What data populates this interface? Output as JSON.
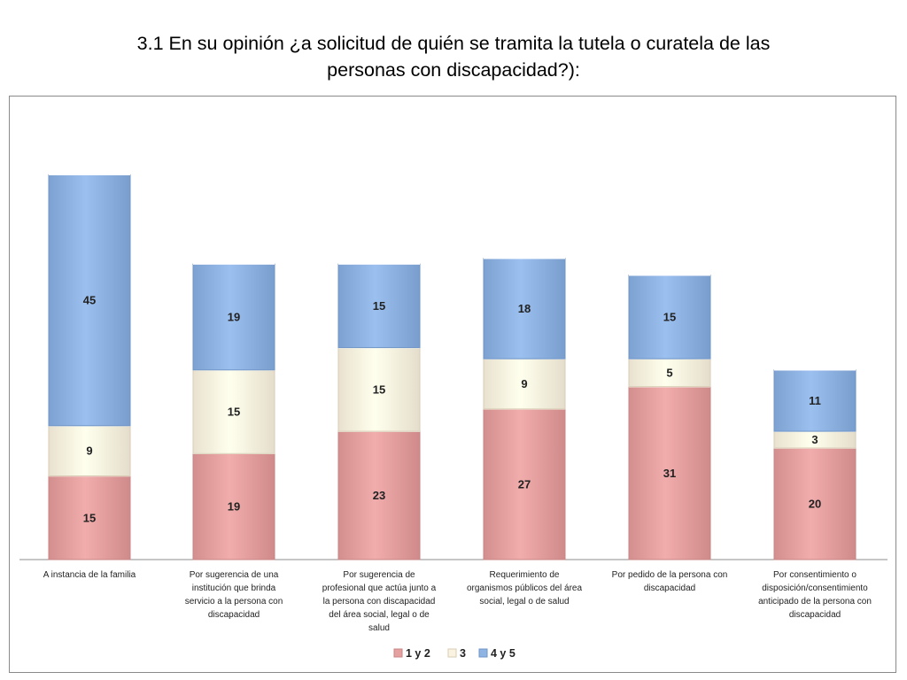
{
  "page": {
    "title_line1": "3.1 En su opinión ¿a solicitud de quién se tramita la tutela o  curatela de las",
    "title_line2": "personas con discapacidad?):"
  },
  "chart_data": {
    "type": "bar",
    "stacked": true,
    "title": "",
    "xlabel": "",
    "ylabel": "",
    "categories": [
      [
        "A instancia de la familia"
      ],
      [
        "Por sugerencia de una",
        "institución que brinda",
        "servicio a la persona con",
        "discapacidad"
      ],
      [
        "Por sugerencia de",
        "profesional que actúa junto a",
        "la persona con discapacidad",
        "del área social, legal o de",
        "salud"
      ],
      [
        "Requerimiento de",
        "organismos públicos  del área",
        "social, legal o de salud"
      ],
      [
        "Por pedido de la persona con",
        "discapacidad"
      ],
      [
        "Por consentimiento  o",
        "disposición/consentimiento",
        "anticipado de la persona con",
        "discapacidad"
      ]
    ],
    "series": [
      {
        "name": "1 y 2",
        "color": "#e5a0a0",
        "values": [
          15,
          19,
          23,
          27,
          31,
          20
        ]
      },
      {
        "name": "3",
        "color": "#fbf3e1",
        "values": [
          9,
          15,
          15,
          9,
          5,
          3
        ]
      },
      {
        "name": "4 y 5",
        "color": "#8fb4e3",
        "values": [
          45,
          19,
          15,
          18,
          15,
          11
        ]
      }
    ],
    "legend_position": "bottom",
    "grid": false
  }
}
